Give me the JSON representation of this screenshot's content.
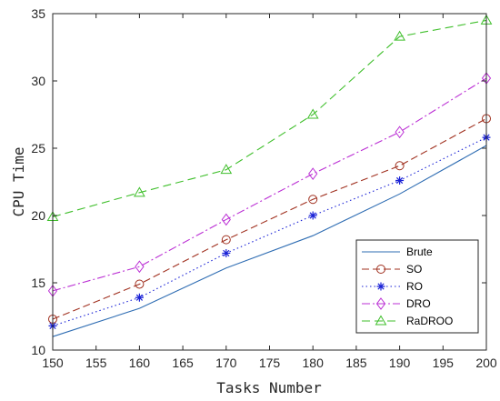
{
  "chart_data": {
    "type": "line",
    "title": "",
    "xlabel": "Tasks Number",
    "ylabel": "CPU Time",
    "xlim": [
      150,
      200
    ],
    "ylim": [
      10,
      35
    ],
    "xticks": [
      150,
      155,
      160,
      165,
      170,
      175,
      180,
      185,
      190,
      195,
      200
    ],
    "yticks": [
      10,
      15,
      20,
      25,
      30,
      35
    ],
    "grid": false,
    "legend_position": "bottom-right",
    "x": [
      150,
      160,
      170,
      180,
      190,
      200
    ],
    "series": [
      {
        "name": "Brute",
        "values": [
          11.0,
          13.1,
          16.1,
          18.5,
          21.6,
          25.2
        ],
        "color": "#2f6db3",
        "dash": "",
        "marker": "none"
      },
      {
        "name": "SO",
        "values": [
          12.3,
          14.9,
          18.2,
          21.2,
          23.7,
          27.2
        ],
        "color": "#a0301f",
        "dash": "8,4",
        "marker": "circle"
      },
      {
        "name": "RO",
        "values": [
          11.8,
          13.9,
          17.2,
          20.0,
          22.6,
          25.8
        ],
        "color": "#1a22d6",
        "dash": "1.5,3",
        "marker": "asterisk"
      },
      {
        "name": "DRO",
        "values": [
          14.4,
          16.2,
          19.7,
          23.1,
          26.2,
          30.2
        ],
        "color": "#bb2fd4",
        "dash": "9,3,2,3",
        "marker": "diamond"
      },
      {
        "name": "RaDROO",
        "values": [
          19.9,
          21.7,
          23.4,
          27.5,
          33.3,
          34.5
        ],
        "color": "#3fbf2b",
        "dash": "9,5",
        "marker": "triangle"
      }
    ]
  }
}
